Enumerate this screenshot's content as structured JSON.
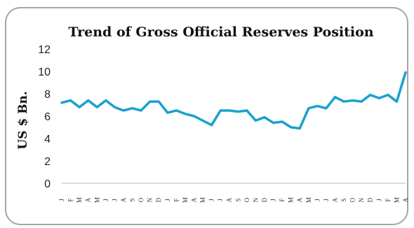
{
  "chart_data": {
    "type": "line",
    "title": "Trend of Gross Official Reserves Position",
    "xlabel": "",
    "ylabel": "US $ Bn.",
    "ylim": [
      0,
      12
    ],
    "yticks": [
      "0",
      "2",
      "4",
      "6",
      "8",
      "10",
      "12"
    ],
    "grid": false,
    "legend": "none",
    "line_color": "#1ba1cf",
    "categories": [
      "J",
      "F",
      "M",
      "A",
      "M",
      "J",
      "J",
      "A",
      "S",
      "O",
      "N",
      "D",
      "J",
      "F",
      "M",
      "A",
      "M",
      "J",
      "J",
      "A",
      "S",
      "O",
      "N",
      "D",
      "J",
      "F",
      "M",
      "A",
      "M",
      "J",
      "J",
      "A",
      "S",
      "O",
      "N",
      "D",
      "J",
      "F",
      "M",
      "A"
    ],
    "series": [
      {
        "values": [
          7.2,
          7.4,
          6.8,
          7.4,
          6.8,
          7.4,
          6.8,
          6.5,
          6.7,
          6.5,
          7.3,
          7.3,
          6.3,
          6.5,
          6.2,
          6.0,
          5.6,
          5.2,
          6.5,
          6.5,
          6.4,
          6.5,
          5.6,
          5.9,
          5.4,
          5.5,
          5.0,
          4.9,
          6.7,
          6.9,
          6.7,
          7.7,
          7.3,
          7.4,
          7.3,
          7.9,
          7.6,
          7.9,
          7.3,
          9.9
        ]
      }
    ]
  }
}
